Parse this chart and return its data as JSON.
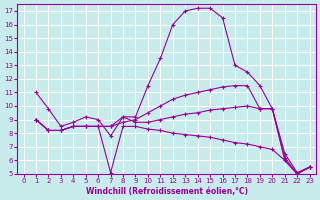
{
  "xlabel": "Windchill (Refroidissement éolien,°C)",
  "background_color": "#c8ecec",
  "line_color": "#990099",
  "grid_color": "#ffffff",
  "xlim": [
    -0.5,
    23.5
  ],
  "ylim": [
    5,
    17.5
  ],
  "xticks": [
    0,
    1,
    2,
    3,
    4,
    5,
    6,
    7,
    8,
    9,
    10,
    11,
    12,
    13,
    14,
    15,
    16,
    17,
    18,
    19,
    20,
    21,
    22,
    23
  ],
  "yticks": [
    5,
    6,
    7,
    8,
    9,
    10,
    11,
    12,
    13,
    14,
    15,
    16,
    17
  ],
  "series": [
    {
      "x": [
        1,
        2,
        3,
        4,
        5,
        6,
        7,
        8,
        9,
        10,
        11,
        12,
        13,
        14,
        15,
        16,
        17,
        18,
        19,
        20,
        21,
        22,
        23
      ],
      "y": [
        11,
        9.8,
        8.5,
        8.8,
        9.2,
        9.0,
        7.8,
        9.2,
        9.2,
        11.5,
        13.5,
        16.0,
        17.0,
        17.2,
        17.2,
        16.5,
        13.0,
        12.5,
        11.5,
        9.8,
        6.5,
        5.1,
        5.5
      ]
    },
    {
      "x": [
        1,
        2,
        3,
        4,
        5,
        6,
        7,
        8,
        9,
        10,
        11,
        12,
        13,
        14,
        15,
        16,
        17,
        18,
        19,
        20,
        21,
        22,
        23
      ],
      "y": [
        9.0,
        8.2,
        8.2,
        8.5,
        8.5,
        8.5,
        8.5,
        8.8,
        9.0,
        9.5,
        10.0,
        10.5,
        10.8,
        11.0,
        11.2,
        11.4,
        11.5,
        11.5,
        9.8,
        9.8,
        6.2,
        5.0,
        5.5
      ]
    },
    {
      "x": [
        1,
        2,
        3,
        4,
        5,
        6,
        7,
        8,
        9,
        10,
        11,
        12,
        13,
        14,
        15,
        16,
        17,
        18,
        19,
        20,
        21,
        22,
        23
      ],
      "y": [
        9.0,
        8.2,
        8.2,
        8.5,
        8.5,
        8.5,
        8.5,
        9.2,
        8.8,
        8.8,
        9.0,
        9.2,
        9.4,
        9.5,
        9.7,
        9.8,
        9.9,
        10.0,
        9.8,
        9.8,
        6.0,
        5.0,
        5.5
      ]
    },
    {
      "x": [
        1,
        2,
        3,
        4,
        5,
        6,
        7,
        8,
        9,
        10,
        11,
        12,
        13,
        14,
        15,
        16,
        17,
        18,
        19,
        20,
        21,
        22,
        23
      ],
      "y": [
        9.0,
        8.2,
        8.2,
        8.5,
        8.5,
        8.5,
        5.1,
        8.5,
        8.5,
        8.3,
        8.2,
        8.0,
        7.9,
        7.8,
        7.7,
        7.5,
        7.3,
        7.2,
        7.0,
        6.8,
        6.0,
        5.0,
        5.5
      ]
    }
  ],
  "figwidth": 3.2,
  "figheight": 2.0,
  "dpi": 100,
  "tick_labelsize": 5,
  "xlabel_fontsize": 5.5
}
